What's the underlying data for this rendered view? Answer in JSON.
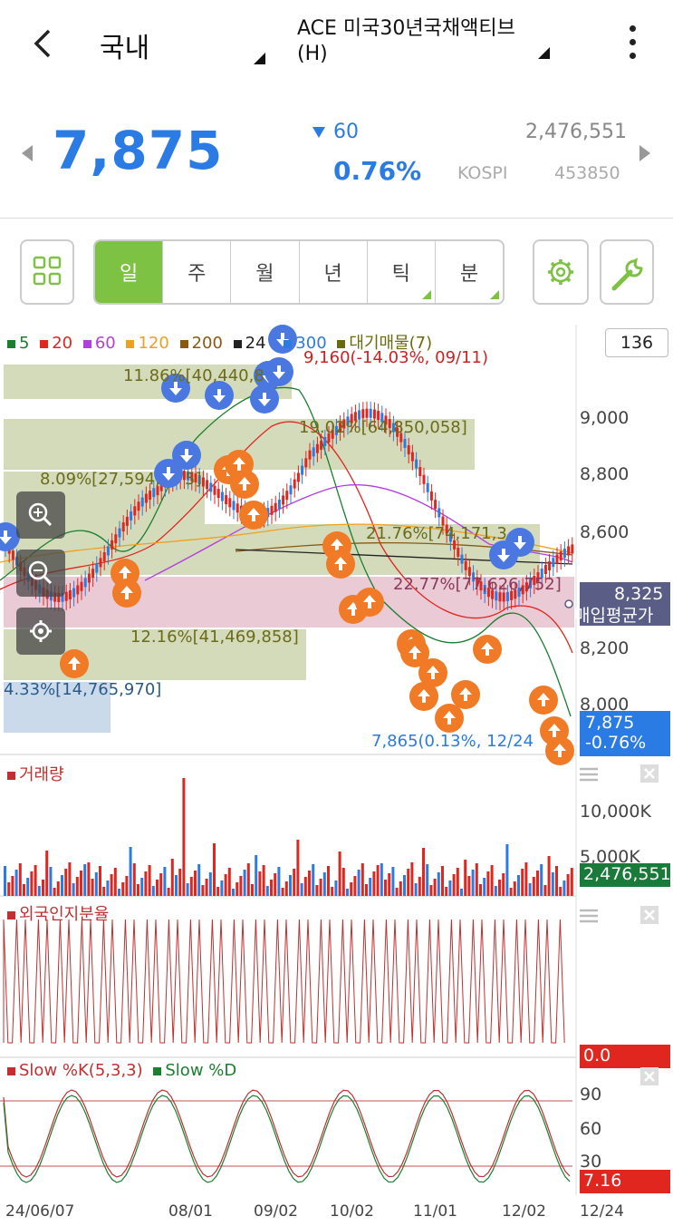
{
  "header": {
    "market": "국내",
    "stock_name": "ACE 미국30년국채액티브(H)"
  },
  "quote": {
    "price": "7,875",
    "change": "60",
    "change_pct": "0.76%",
    "volume": "2,476,551",
    "exchange": "KOSPI",
    "code": "453850"
  },
  "tabs": [
    "일",
    "주",
    "월",
    "년",
    "틱",
    "분"
  ],
  "legend": {
    "ma": [
      {
        "label": "5",
        "color": "#1a7f2e"
      },
      {
        "label": "20",
        "color": "#e0261f"
      },
      {
        "label": "60",
        "color": "#b23de0"
      },
      {
        "label": "120",
        "color": "#f0a020"
      },
      {
        "label": "200",
        "color": "#8a5a10"
      },
      {
        "label": "24",
        "color": "#222222"
      },
      {
        "label": "300",
        "color": "#2a7be4"
      }
    ],
    "supply": "대기매물(7)",
    "count": "136"
  },
  "annotations": {
    "high": "9,160(-14.03%, 09/11)",
    "low": "7,865(0.13%, 12/24",
    "bands": [
      "11.86%[40,440,8",
      "19.02%[64,850,058]",
      "8.09%[27,594,",
      "5]",
      "21.76%[74,171,3",
      "22.77%[77,626,752]",
      "12.16%[41,469,858]",
      "4.33%[14,765,970]"
    ],
    "avg_price": "8,325",
    "avg_label": "매입평균가",
    "last_price": "7,875",
    "last_pct": "-0.76%"
  },
  "price_axis": [
    "9,000",
    "8,800",
    "8,600",
    "8,200",
    "8,000"
  ],
  "volume": {
    "title": "거래량",
    "axis": [
      "10,000K",
      "5,000K"
    ],
    "last": "2,476,551"
  },
  "foreign": {
    "title": "외국인지분율",
    "last": "0.0"
  },
  "stoch": {
    "k_label": "Slow %K(5,3,3)",
    "d_label": "Slow %D",
    "axis": [
      "90",
      "60",
      "30"
    ],
    "last": "7.16"
  },
  "dates": [
    "24/06/07",
    "08/01",
    "09/02",
    "10/02",
    "11/01",
    "12/02",
    "12/24"
  ],
  "colors": {
    "up": "#e0261f",
    "down": "#2a7be4",
    "accent": "#7dc242"
  }
}
